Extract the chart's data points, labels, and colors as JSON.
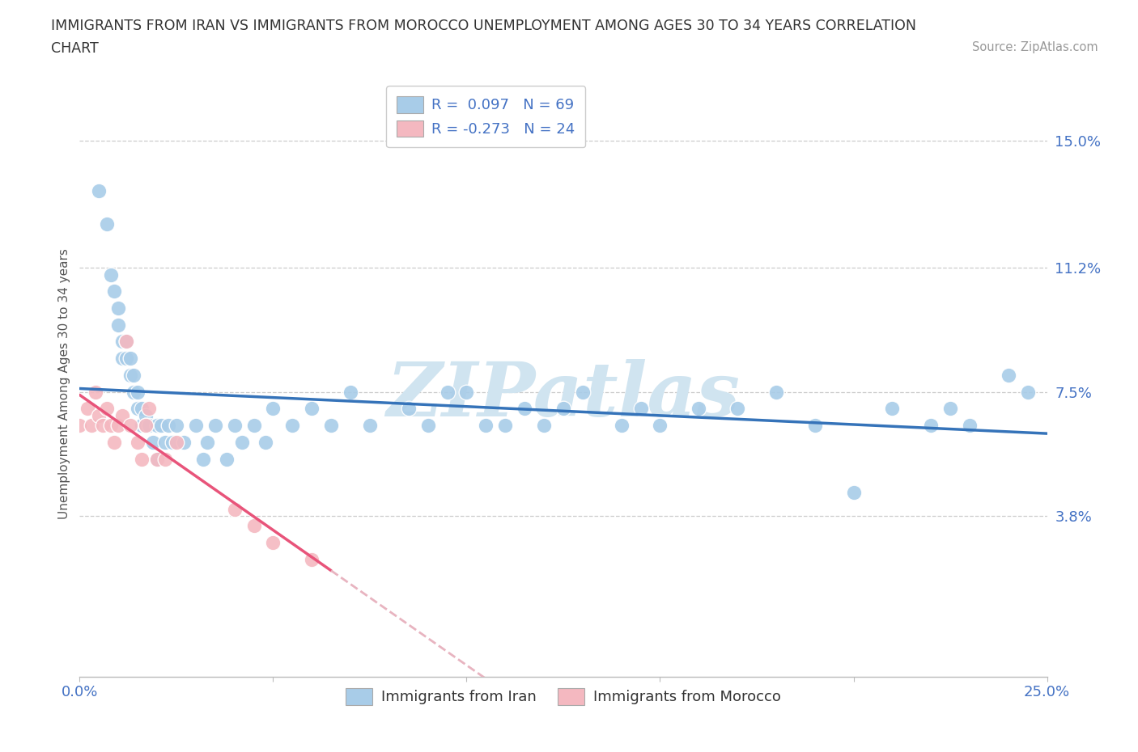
{
  "title_line1": "IMMIGRANTS FROM IRAN VS IMMIGRANTS FROM MOROCCO UNEMPLOYMENT AMONG AGES 30 TO 34 YEARS CORRELATION",
  "title_line2": "CHART",
  "source_text": "Source: ZipAtlas.com",
  "ylabel": "Unemployment Among Ages 30 to 34 years",
  "xlim": [
    0.0,
    0.25
  ],
  "ylim": [
    -0.01,
    0.165
  ],
  "ytick_positions": [
    0.038,
    0.075,
    0.112,
    0.15
  ],
  "ytick_labels": [
    "3.8%",
    "7.5%",
    "11.2%",
    "15.0%"
  ],
  "iran_color": "#a8cce8",
  "morocco_color": "#f4b8c0",
  "trend_iran_color": "#3573b9",
  "trend_morocco_color": "#e8547a",
  "trend_morocco_dash_color": "#e8b4c0",
  "watermark_text": "ZIPatlas",
  "watermark_color": "#d0e4f0",
  "background_color": "#ffffff",
  "iran_x": [
    0.005,
    0.007,
    0.008,
    0.009,
    0.01,
    0.01,
    0.011,
    0.011,
    0.012,
    0.012,
    0.013,
    0.013,
    0.014,
    0.014,
    0.015,
    0.015,
    0.016,
    0.016,
    0.017,
    0.017,
    0.018,
    0.019,
    0.02,
    0.02,
    0.021,
    0.022,
    0.023,
    0.024,
    0.025,
    0.027,
    0.03,
    0.032,
    0.033,
    0.035,
    0.038,
    0.04,
    0.042,
    0.045,
    0.048,
    0.05,
    0.055,
    0.06,
    0.065,
    0.07,
    0.075,
    0.085,
    0.09,
    0.095,
    0.1,
    0.105,
    0.11,
    0.115,
    0.12,
    0.125,
    0.13,
    0.14,
    0.145,
    0.15,
    0.16,
    0.17,
    0.18,
    0.19,
    0.2,
    0.21,
    0.22,
    0.225,
    0.23,
    0.24,
    0.245
  ],
  "iran_y": [
    0.135,
    0.125,
    0.11,
    0.105,
    0.1,
    0.095,
    0.09,
    0.085,
    0.09,
    0.085,
    0.08,
    0.085,
    0.075,
    0.08,
    0.07,
    0.075,
    0.07,
    0.065,
    0.068,
    0.065,
    0.065,
    0.06,
    0.065,
    0.055,
    0.065,
    0.06,
    0.065,
    0.06,
    0.065,
    0.06,
    0.065,
    0.055,
    0.06,
    0.065,
    0.055,
    0.065,
    0.06,
    0.065,
    0.06,
    0.07,
    0.065,
    0.07,
    0.065,
    0.075,
    0.065,
    0.07,
    0.065,
    0.075,
    0.075,
    0.065,
    0.065,
    0.07,
    0.065,
    0.07,
    0.075,
    0.065,
    0.07,
    0.065,
    0.07,
    0.07,
    0.075,
    0.065,
    0.045,
    0.07,
    0.065,
    0.07,
    0.065,
    0.08,
    0.075
  ],
  "morocco_x": [
    0.0,
    0.002,
    0.003,
    0.004,
    0.005,
    0.006,
    0.007,
    0.008,
    0.009,
    0.01,
    0.011,
    0.012,
    0.013,
    0.015,
    0.016,
    0.017,
    0.018,
    0.02,
    0.022,
    0.025,
    0.04,
    0.045,
    0.05,
    0.06
  ],
  "morocco_y": [
    0.065,
    0.07,
    0.065,
    0.075,
    0.068,
    0.065,
    0.07,
    0.065,
    0.06,
    0.065,
    0.068,
    0.09,
    0.065,
    0.06,
    0.055,
    0.065,
    0.07,
    0.055,
    0.055,
    0.06,
    0.04,
    0.035,
    0.03,
    0.025
  ],
  "legend_iran_r": "R =  0.097",
  "legend_iran_n": "N = 69",
  "legend_morocco_r": "R = -0.273",
  "legend_morocco_n": "N = 24"
}
